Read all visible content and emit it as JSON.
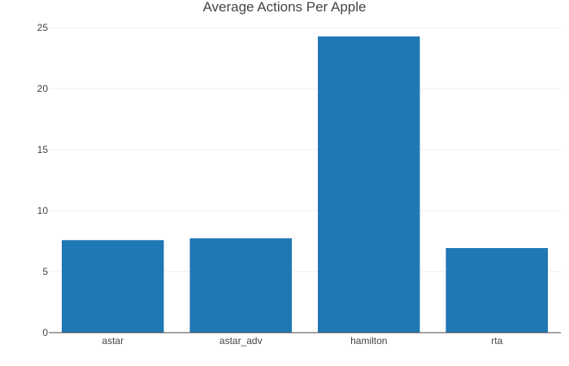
{
  "chart_data": {
    "type": "bar",
    "title": "Average Actions Per Apple",
    "categories": [
      "astar",
      "astar_adv",
      "hamilton",
      "rta"
    ],
    "values": [
      7.6,
      7.75,
      24.3,
      6.95
    ],
    "xlabel": "",
    "ylabel": "",
    "ylim": [
      0,
      25
    ],
    "yticks": [
      0,
      5,
      10,
      15,
      20,
      25
    ],
    "grid": true,
    "legend": "none",
    "bar_color": "#1f77b4"
  }
}
